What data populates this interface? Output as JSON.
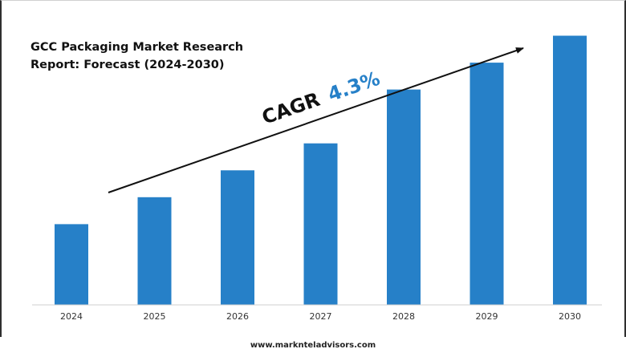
{
  "chart_data": {
    "type": "bar",
    "title_line1": "GCC Packaging Market Research",
    "title_line2": "Report: Forecast (2024-2030)",
    "categories": [
      "2024",
      "2025",
      "2026",
      "2027",
      "2028",
      "2029",
      "2030"
    ],
    "values": [
      3.0,
      4.0,
      5.0,
      6.0,
      8.0,
      9.0,
      10.0
    ],
    "ylim": [
      0,
      11
    ],
    "grid": false,
    "legend": "none",
    "bar_color": "#2680c8",
    "annotation": {
      "label": "CAGR",
      "value": "4.3%",
      "label_color": "#111111",
      "value_color": "#2680c8"
    }
  },
  "footer": {
    "url": "www.marknteladvisors.com"
  }
}
